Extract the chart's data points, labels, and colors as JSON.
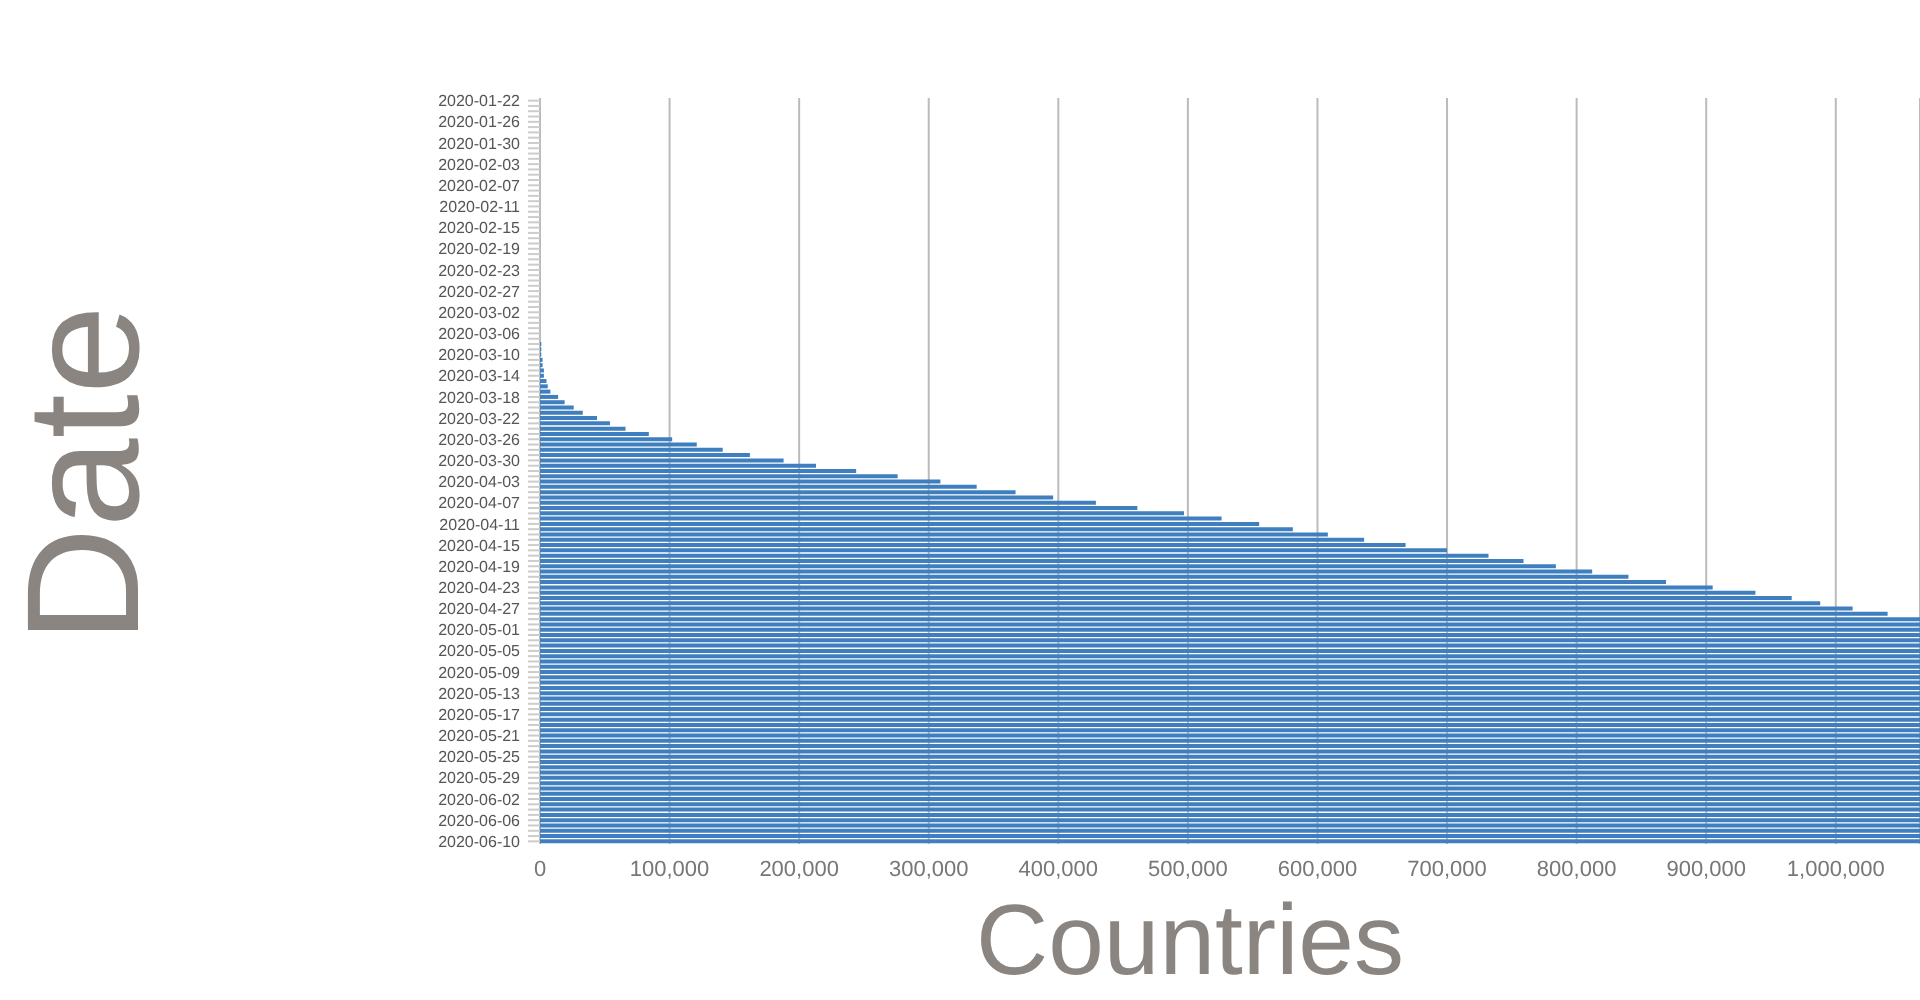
{
  "chart_data": {
    "type": "bar",
    "orientation": "horizontal",
    "xlabel": "Countries",
    "ylabel": "Date",
    "categories": [
      "2020-01-22",
      null,
      null,
      null,
      "2020-01-26",
      null,
      null,
      null,
      "2020-01-30",
      null,
      null,
      null,
      "2020-02-03",
      null,
      null,
      null,
      "2020-02-07",
      null,
      null,
      null,
      "2020-02-11",
      null,
      null,
      null,
      "2020-02-15",
      null,
      null,
      null,
      "2020-02-19",
      null,
      null,
      null,
      "2020-02-23",
      null,
      null,
      null,
      "2020-02-27",
      null,
      null,
      null,
      "2020-03-02",
      null,
      null,
      null,
      "2020-03-06",
      null,
      null,
      null,
      "2020-03-10",
      null,
      null,
      null,
      "2020-03-14",
      null,
      null,
      null,
      "2020-03-18",
      null,
      null,
      null,
      "2020-03-22",
      null,
      null,
      null,
      "2020-03-26",
      null,
      null,
      null,
      "2020-03-30",
      null,
      null,
      null,
      "2020-04-03",
      null,
      null,
      null,
      "2020-04-07",
      null,
      null,
      null,
      "2020-04-11",
      null,
      null,
      null,
      "2020-04-15",
      null,
      null,
      null,
      "2020-04-19",
      null,
      null,
      null,
      "2020-04-23",
      null,
      null,
      null,
      "2020-04-27",
      null,
      null,
      null,
      "2020-05-01",
      null,
      null,
      null,
      "2020-05-05",
      null,
      null,
      null,
      "2020-05-09",
      null,
      null,
      null,
      "2020-05-13",
      null,
      null,
      null,
      "2020-05-17",
      null,
      null,
      null,
      "2020-05-21",
      null,
      null,
      null,
      "2020-05-25",
      null,
      null,
      null,
      "2020-05-29",
      null,
      null,
      null,
      "2020-06-02",
      null,
      null,
      null,
      "2020-06-06",
      null,
      null,
      null,
      "2020-06-10"
    ],
    "values": [
      0,
      0,
      0,
      0,
      0,
      0,
      0,
      0,
      0,
      0,
      0,
      0,
      0,
      0,
      0,
      0,
      0,
      0,
      0,
      0,
      0,
      0,
      0,
      0,
      0,
      0,
      0,
      0,
      0,
      0,
      0,
      0,
      0,
      0,
      0,
      0,
      0,
      0,
      0,
      0,
      0,
      0,
      0,
      0,
      0,
      0,
      1000,
      1000,
      1000,
      2000,
      2000,
      3000,
      3000,
      5000,
      6000,
      8000,
      14000,
      19000,
      26000,
      33000,
      44000,
      54000,
      66000,
      84000,
      102000,
      121000,
      141000,
      162000,
      188000,
      213000,
      244000,
      276000,
      309000,
      337000,
      367000,
      396000,
      429000,
      461000,
      497000,
      526000,
      555000,
      581000,
      608000,
      636000,
      668000,
      700000,
      732000,
      759000,
      784000,
      812000,
      840000,
      869000,
      905000,
      938000,
      966000,
      988000,
      1013000,
      1040000,
      1065000,
      1065000,
      1065000,
      1065000,
      1065000,
      1065000,
      1065000,
      1065000,
      1065000,
      1065000,
      1065000,
      1065000,
      1065000,
      1065000,
      1065000,
      1065000,
      1065000,
      1065000,
      1065000,
      1065000,
      1065000,
      1065000,
      1065000,
      1065000,
      1065000,
      1065000,
      1065000,
      1065000,
      1065000,
      1065000,
      1065000,
      1065000,
      1065000,
      1065000,
      1065000,
      1065000,
      1065000,
      1065000,
      1065000,
      1065000,
      1065000,
      1065000,
      1065000
    ],
    "color": "#3f7fbf",
    "xlim": [
      0,
      1065000
    ],
    "xticks": [
      {
        "value": 0,
        "label": "0"
      },
      {
        "value": 100000,
        "label": "100,000"
      },
      {
        "value": 200000,
        "label": "200,000"
      },
      {
        "value": 300000,
        "label": "300,000"
      },
      {
        "value": 400000,
        "label": "400,000"
      },
      {
        "value": 500000,
        "label": "500,000"
      },
      {
        "value": 600000,
        "label": "600,000"
      },
      {
        "value": 700000,
        "label": "700,000"
      },
      {
        "value": 800000,
        "label": "800,000"
      },
      {
        "value": 900000,
        "label": "900,000"
      },
      {
        "value": 1000000,
        "label": "1,000,000"
      }
    ],
    "grid": "x"
  }
}
